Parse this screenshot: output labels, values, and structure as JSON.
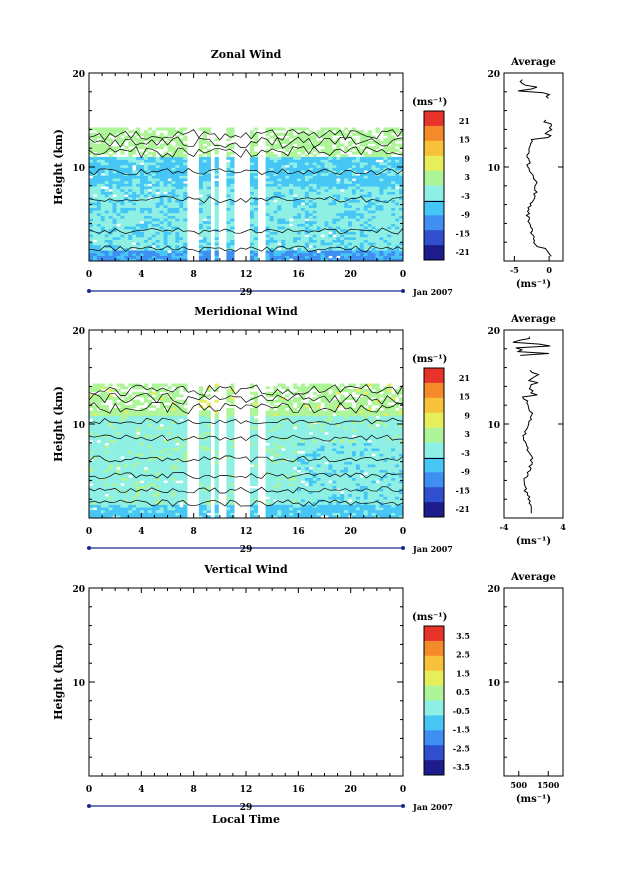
{
  "chart_data": [
    {
      "type": "heatmap",
      "title": "Zonal Wind",
      "ylabel": "Height (km)",
      "ylim": [
        0,
        20
      ],
      "yticks": [
        "20",
        "10"
      ],
      "xlim": [
        0,
        24
      ],
      "xticks": [
        "0",
        "4",
        "8",
        "12",
        "16",
        "20",
        "0"
      ],
      "date_label": "29",
      "date_suffix": "Jan 2007",
      "data_top_km": 14.2,
      "colorbar": {
        "unit": "(ms⁻¹)",
        "ticks": [
          "21",
          "15",
          "9",
          "3",
          "-3",
          "-9",
          "-15",
          "-21"
        ],
        "range": [
          -24,
          24
        ]
      },
      "average": {
        "title": "Average",
        "xticks": [
          "-5",
          "0"
        ],
        "xunit": "(ms⁻¹)",
        "ylim": [
          0,
          20
        ],
        "yticks": [
          "20",
          "10"
        ],
        "xlim": [
          -6.5,
          2
        ]
      }
    },
    {
      "type": "heatmap",
      "title": "Meridional Wind",
      "ylabel": "Height (km)",
      "ylim": [
        0,
        20
      ],
      "yticks": [
        "20",
        "10"
      ],
      "xlim": [
        0,
        24
      ],
      "xticks": [
        "0",
        "4",
        "8",
        "12",
        "16",
        "20",
        "0"
      ],
      "date_label": "29",
      "date_suffix": "Jan 2007",
      "data_top_km": 14.3,
      "colorbar": {
        "unit": "(ms⁻¹)",
        "ticks": [
          "21",
          "15",
          "9",
          "3",
          "-3",
          "-9",
          "-15",
          "-21"
        ],
        "range": [
          -24,
          24
        ]
      },
      "average": {
        "title": "Average",
        "xticks": [
          "-4",
          "4"
        ],
        "xunit": "(ms⁻¹)",
        "ylim": [
          0,
          20
        ],
        "yticks": [
          "20",
          "10"
        ],
        "xlim": [
          -4,
          4
        ]
      }
    },
    {
      "type": "heatmap",
      "title": "Vertical Wind",
      "ylabel": "Height (km)",
      "xlabel": "Local Time",
      "ylim": [
        0,
        20
      ],
      "yticks": [
        "20",
        "10"
      ],
      "xlim": [
        0,
        24
      ],
      "xticks": [
        "0",
        "4",
        "8",
        "12",
        "16",
        "20",
        "0"
      ],
      "date_label": "29",
      "date_suffix": "Jan 2007",
      "data_top_km": 0,
      "colorbar": {
        "unit": "(ms⁻¹)",
        "ticks": [
          "3.5",
          "2.5",
          "1.5",
          "0.5",
          "-0.5",
          "-1.5",
          "-2.5",
          "-3.5"
        ],
        "range": [
          -4,
          4
        ]
      },
      "average": {
        "title": "Average",
        "xticks": [
          "500",
          "1500"
        ],
        "xunit": "(ms⁻¹)",
        "ylim": [
          0,
          20
        ],
        "yticks": [
          "20",
          "10"
        ],
        "xlim": [
          0,
          2000
        ]
      }
    }
  ]
}
